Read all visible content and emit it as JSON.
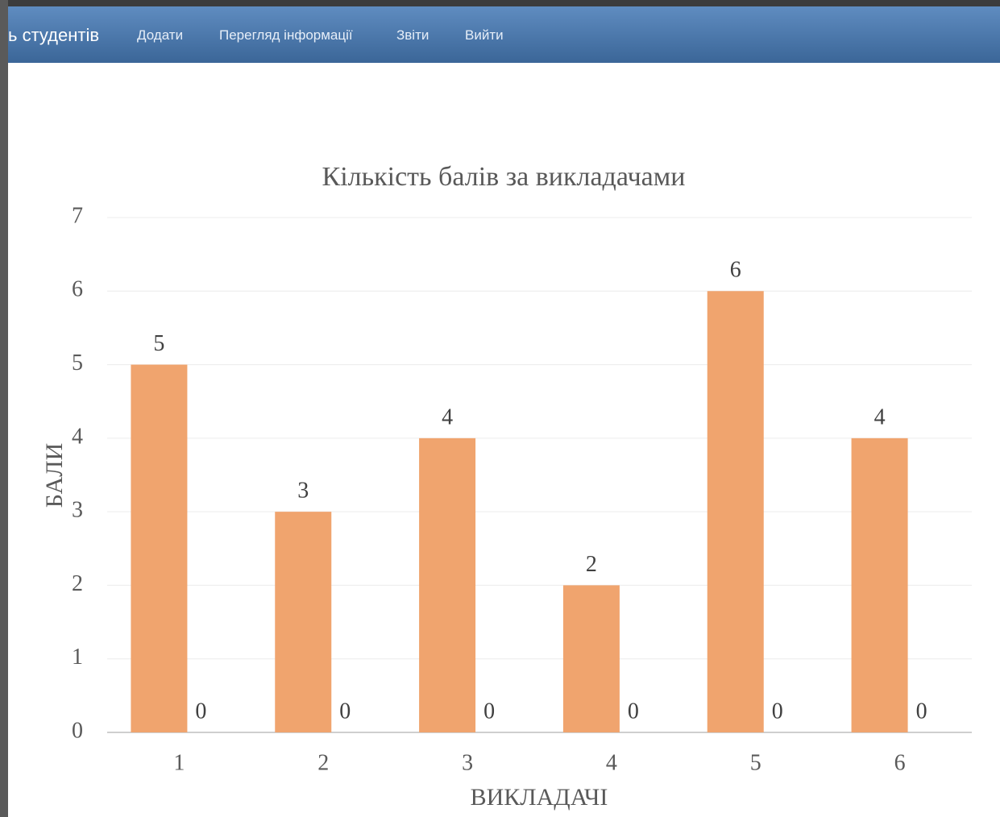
{
  "nav": {
    "brand": "ь студентів",
    "items": [
      "Додати",
      "Перегляд інформації",
      "Звіти",
      "Вийти"
    ]
  },
  "chart_data": {
    "type": "bar",
    "title": "Кількість балів за викладачами",
    "x_label": "ВИКЛАДАЧІ",
    "y_label": "БАЛИ",
    "categories": [
      "1",
      "2",
      "3",
      "4",
      "5",
      "6"
    ],
    "series": [
      {
        "color": "#f0a46e",
        "values": [
          5,
          3,
          4,
          2,
          6,
          4
        ]
      },
      {
        "color": "#a5a5a5",
        "values": [
          0,
          0,
          0,
          0,
          0,
          0
        ]
      }
    ],
    "ylim": [
      0,
      7
    ],
    "yticks": [
      0,
      1,
      2,
      3,
      4,
      5,
      6,
      7
    ],
    "grid": true
  }
}
